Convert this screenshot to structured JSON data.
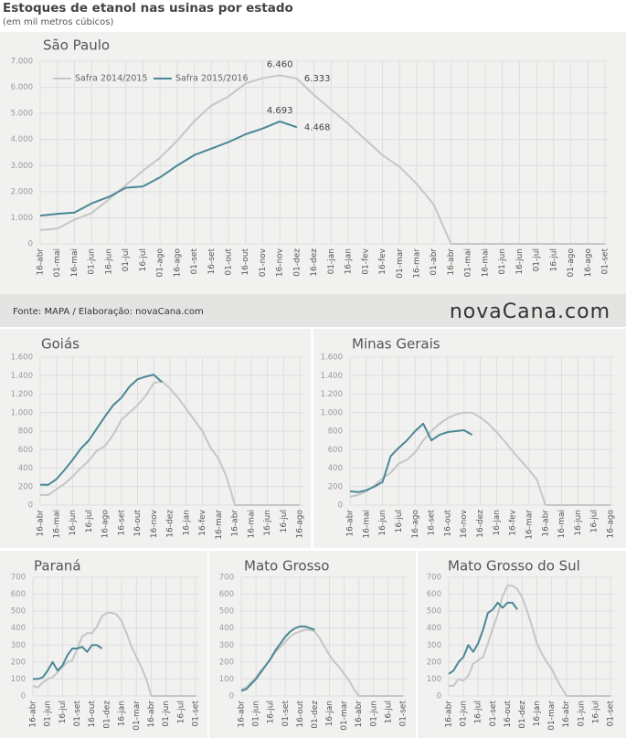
{
  "title": "Estoques de etanol nas usinas por estado",
  "subtitle": "(em mil metros cúbicos)",
  "source": "Fonte: MAPA / Elaboração: novaCana.com",
  "logo": "novaCana.com",
  "chart_data": [
    {
      "type": "line",
      "title": "São Paulo",
      "grid": true,
      "legend": "top-left",
      "categories": [
        "16-abr",
        "01-mai",
        "16-mai",
        "01-jun",
        "16-jun",
        "01-jul",
        "16-jul",
        "01-ago",
        "16-ago",
        "01-set",
        "16-set",
        "01-out",
        "16-out",
        "01-nov",
        "16-nov",
        "01-dez",
        "16-dez",
        "01-jan",
        "16-jan",
        "01-fev",
        "16-fev",
        "01-mar",
        "16-mar",
        "01-abr",
        "16-abr",
        "01-mai",
        "16-mai",
        "01-jun",
        "16-jun",
        "01-jul",
        "16-jul",
        "01-ago",
        "16-ago",
        "01-set"
      ],
      "ylim": [
        0,
        7000
      ],
      "yticks": [
        0,
        {
          "value": 1000,
          "label": "1.000"
        },
        {
          "value": 2000,
          "label": "2.000"
        },
        {
          "value": 3000,
          "label": "3.000"
        },
        {
          "value": 4000,
          "label": "4.000"
        },
        {
          "value": 5000,
          "label": "5.000"
        },
        {
          "value": 6000,
          "label": "6.000"
        },
        {
          "value": 7000,
          "label": "7.000"
        }
      ],
      "series": [
        {
          "name": "Safra 2014/2015",
          "color": "#c6c6c6",
          "values": [
            530,
            580,
            930,
            1180,
            1700,
            2250,
            2800,
            3300,
            3950,
            4700,
            5300,
            5650,
            6150,
            6350,
            6460,
            6333,
            5700,
            5150,
            4600,
            4000,
            3400,
            2950,
            2300,
            1500,
            0,
            0,
            0,
            0,
            0,
            0,
            0,
            0,
            0,
            0
          ],
          "value_labels": [
            null,
            null,
            null,
            null,
            null,
            null,
            null,
            null,
            null,
            null,
            null,
            null,
            null,
            null,
            "6.460",
            "6.333",
            null,
            null,
            null,
            null,
            null,
            null,
            null,
            null,
            null,
            null,
            null,
            null,
            null,
            null,
            null,
            null,
            null,
            null
          ]
        },
        {
          "name": "Safra 2015/2016",
          "color": "#4b8796",
          "values": [
            1080,
            1150,
            1200,
            1550,
            1800,
            2150,
            2200,
            2550,
            3000,
            3400,
            3650,
            3900,
            4200,
            4420,
            4693,
            4468,
            null,
            null,
            null,
            null,
            null,
            null,
            null,
            null,
            null,
            null,
            null,
            null,
            null,
            null,
            null,
            null,
            null,
            null
          ],
          "value_labels": [
            null,
            null,
            null,
            null,
            null,
            null,
            null,
            null,
            null,
            null,
            null,
            null,
            null,
            null,
            "4.693",
            "4.468",
            null,
            null,
            null,
            null,
            null,
            null,
            null,
            null,
            null,
            null,
            null,
            null,
            null,
            null,
            null,
            null,
            null,
            null
          ]
        }
      ]
    },
    {
      "type": "line",
      "title": "Goiás",
      "grid": true,
      "categories": [
        "16-abr",
        null,
        "16-mai",
        null,
        "16-jun",
        null,
        "16-jul",
        null,
        "16-ago",
        null,
        "16-set",
        null,
        "16-out",
        null,
        "16-nov",
        null,
        "16-dez",
        null,
        "16-jan",
        null,
        "16-fev",
        null,
        "16-mar",
        null,
        "16-abr",
        null,
        "16-mai",
        null,
        "16-jun",
        null,
        "16-jul",
        null,
        "16-ago"
      ],
      "ylim": [
        0,
        1600
      ],
      "yticks": [
        0,
        200,
        400,
        600,
        800,
        {
          "value": 1000,
          "label": "1.000"
        },
        {
          "value": 1200,
          "label": "1.200"
        },
        {
          "value": 1400,
          "label": "1.400"
        },
        {
          "value": 1600,
          "label": "1.600"
        }
      ],
      "series": [
        {
          "color": "#c6c6c6",
          "values": [
            110,
            110,
            170,
            230,
            310,
            400,
            480,
            590,
            640,
            760,
            920,
            1000,
            1080,
            1180,
            1320,
            1340,
            1260,
            1160,
            1040,
            920,
            800,
            620,
            500,
            300,
            0,
            0,
            0,
            0,
            0,
            0,
            0,
            0,
            0
          ]
        },
        {
          "color": "#4b8796",
          "values": [
            220,
            220,
            280,
            380,
            490,
            610,
            700,
            830,
            960,
            1080,
            1160,
            1280,
            1360,
            1390,
            1410,
            1330,
            null,
            null,
            null,
            null,
            null,
            null,
            null,
            null,
            null,
            null,
            null,
            null,
            null,
            null,
            null,
            null,
            null
          ]
        }
      ]
    },
    {
      "type": "line",
      "title": "Minas Gerais",
      "grid": true,
      "categories": [
        "16-abr",
        null,
        "16-mai",
        null,
        "16-jun",
        null,
        "16-jul",
        null,
        "16-ago",
        null,
        "16-set",
        null,
        "16-out",
        null,
        "16-nov",
        null,
        "16-dez",
        null,
        "16-jan",
        null,
        "16-fev",
        null,
        "16-mar",
        null,
        "16-abr",
        null,
        "16-mai",
        null,
        "16-jun",
        null,
        "16-jul",
        null,
        "16-ago"
      ],
      "ylim": [
        0,
        1600
      ],
      "yticks": [
        0,
        200,
        400,
        600,
        800,
        {
          "value": 1000,
          "label": "1.000"
        },
        {
          "value": 1200,
          "label": "1.200"
        },
        {
          "value": 1400,
          "label": "1.400"
        },
        {
          "value": 1600,
          "label": "1.600"
        }
      ],
      "series": [
        {
          "color": "#c6c6c6",
          "values": [
            90,
            110,
            150,
            210,
            290,
            350,
            450,
            490,
            570,
            700,
            800,
            880,
            940,
            980,
            1000,
            1000,
            950,
            880,
            790,
            690,
            580,
            480,
            380,
            270,
            0,
            0,
            0,
            0,
            0,
            0,
            0,
            0,
            0
          ]
        },
        {
          "color": "#4b8796",
          "values": [
            150,
            140,
            160,
            200,
            250,
            530,
            620,
            700,
            800,
            880,
            700,
            760,
            790,
            800,
            810,
            760,
            null,
            null,
            null,
            null,
            null,
            null,
            null,
            null,
            null,
            null,
            null,
            null,
            null,
            null,
            null,
            null,
            null
          ]
        }
      ]
    },
    {
      "type": "line",
      "title": "Paraná",
      "grid": true,
      "categories": [
        "16-abr",
        null,
        null,
        "01-jun",
        null,
        null,
        "16-jul",
        null,
        null,
        "01-set",
        null,
        null,
        "16-out",
        null,
        null,
        "01-dez",
        null,
        null,
        "16-jan",
        null,
        null,
        "01-mar",
        null,
        null,
        "16-abr",
        null,
        null,
        "01-jun",
        null,
        null,
        "16-jul",
        null,
        null,
        "01-set"
      ],
      "ylim": [
        0,
        700
      ],
      "yticks": [
        0,
        100,
        200,
        300,
        400,
        500,
        600,
        700
      ],
      "series": [
        {
          "color": "#c6c6c6",
          "values": [
            60,
            50,
            80,
            100,
            110,
            140,
            170,
            200,
            210,
            280,
            350,
            370,
            370,
            410,
            470,
            490,
            490,
            480,
            440,
            370,
            290,
            230,
            170,
            100,
            0,
            0,
            0,
            0,
            0,
            0,
            0,
            0,
            0,
            0
          ]
        },
        {
          "color": "#4b8796",
          "values": [
            100,
            100,
            110,
            150,
            200,
            150,
            180,
            240,
            280,
            280,
            290,
            260,
            300,
            300,
            280,
            null,
            null,
            null,
            null,
            null,
            null,
            null,
            null,
            null,
            null,
            null,
            null,
            null,
            null,
            null,
            null,
            null,
            null,
            null
          ]
        }
      ]
    },
    {
      "type": "line",
      "title": "Mato Grosso",
      "grid": true,
      "categories": [
        "16-abr",
        null,
        null,
        "01-jun",
        null,
        null,
        "16-jul",
        null,
        null,
        "01-set",
        null,
        null,
        "16-out",
        null,
        null,
        "01-dez",
        null,
        null,
        "16-jan",
        null,
        null,
        "01-mar",
        null,
        null,
        "16-abr",
        null,
        null,
        "01-jun",
        null,
        null,
        "16-jul",
        null,
        null,
        "01-set"
      ],
      "ylim": [
        0,
        700
      ],
      "yticks": [
        0,
        100,
        200,
        300,
        400,
        500,
        600,
        700
      ],
      "series": [
        {
          "color": "#c6c6c6",
          "values": [
            40,
            50,
            80,
            110,
            150,
            180,
            220,
            260,
            290,
            320,
            350,
            370,
            380,
            390,
            390,
            380,
            340,
            290,
            240,
            200,
            170,
            130,
            90,
            40,
            0,
            0,
            0,
            0,
            0,
            0,
            0,
            0,
            0,
            0
          ]
        },
        {
          "color": "#4b8796",
          "values": [
            30,
            40,
            70,
            100,
            140,
            180,
            220,
            270,
            310,
            350,
            380,
            400,
            410,
            410,
            400,
            390,
            null,
            null,
            null,
            null,
            null,
            null,
            null,
            null,
            null,
            null,
            null,
            null,
            null,
            null,
            null,
            null,
            null,
            null
          ]
        }
      ]
    },
    {
      "type": "line",
      "title": "Mato Grosso do Sul",
      "grid": true,
      "categories": [
        "16-abr",
        null,
        null,
        "01-jun",
        null,
        null,
        "16-jul",
        null,
        null,
        "01-set",
        null,
        null,
        "16-out",
        null,
        null,
        "01-dez",
        null,
        null,
        "16-jan",
        null,
        null,
        "01-mar",
        null,
        null,
        "16-abr",
        null,
        null,
        "01-jun",
        null,
        null,
        "16-jul",
        null,
        null,
        "01-set"
      ],
      "ylim": [
        0,
        700
      ],
      "yticks": [
        0,
        100,
        200,
        300,
        400,
        500,
        600,
        700
      ],
      "series": [
        {
          "color": "#c6c6c6",
          "values": [
            60,
            60,
            100,
            90,
            120,
            190,
            210,
            230,
            310,
            400,
            480,
            590,
            650,
            650,
            630,
            580,
            500,
            410,
            310,
            250,
            200,
            160,
            100,
            50,
            0,
            0,
            0,
            0,
            0,
            0,
            0,
            0,
            0,
            0
          ]
        },
        {
          "color": "#4b8796",
          "values": [
            130,
            150,
            200,
            230,
            300,
            260,
            310,
            390,
            490,
            510,
            550,
            520,
            550,
            550,
            510,
            null,
            null,
            null,
            null,
            null,
            null,
            null,
            null,
            null,
            null,
            null,
            null,
            null,
            null,
            null,
            null,
            null,
            null,
            null
          ]
        }
      ]
    }
  ]
}
